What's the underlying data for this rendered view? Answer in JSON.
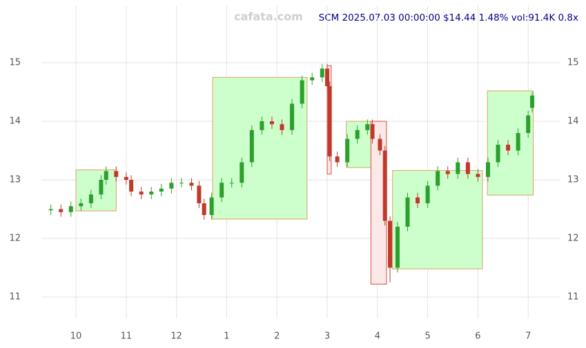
{
  "chart_data": {
    "type": "candlestick",
    "title": "SCM 2025.07.03 00:00:00 $14.44 1.48% vol:91.4K 0.8x",
    "watermark": "cafata.com",
    "x": [
      9.5,
      9.7,
      9.9,
      10.1,
      10.3,
      10.5,
      10.6,
      10.8,
      11.0,
      11.1,
      11.3,
      11.5,
      11.7,
      11.9,
      12.1,
      12.3,
      12.45,
      12.55,
      12.7,
      12.9,
      13.1,
      13.3,
      13.5,
      13.7,
      13.9,
      14.1,
      14.3,
      14.5,
      14.7,
      14.9,
      15.0,
      15.05,
      15.2,
      15.4,
      15.6,
      15.8,
      15.9,
      16.05,
      16.15,
      16.25,
      16.4,
      16.6,
      16.8,
      17.0,
      17.2,
      17.4,
      17.6,
      17.8,
      18.0,
      18.2,
      18.4,
      18.6,
      18.8,
      19.0,
      19.08
    ],
    "open": [
      12.48,
      12.5,
      12.45,
      12.55,
      12.6,
      12.75,
      13.0,
      13.15,
      13.05,
      13.0,
      12.8,
      12.75,
      12.8,
      12.85,
      12.95,
      12.95,
      12.9,
      12.6,
      12.4,
      12.7,
      12.95,
      12.95,
      13.3,
      13.85,
      14.0,
      13.95,
      13.85,
      14.3,
      14.7,
      14.75,
      14.9,
      14.6,
      13.4,
      13.3,
      13.7,
      13.85,
      13.95,
      13.7,
      13.5,
      12.3,
      11.5,
      12.2,
      12.7,
      12.6,
      12.9,
      13.15,
      13.1,
      13.3,
      13.1,
      13.05,
      13.3,
      13.6,
      13.5,
      13.8,
      14.23
    ],
    "high": [
      12.58,
      12.58,
      12.63,
      12.68,
      12.83,
      13.08,
      13.23,
      13.23,
      13.13,
      13.08,
      12.88,
      12.88,
      12.93,
      13.03,
      13.03,
      13.03,
      12.98,
      12.68,
      12.78,
      13.03,
      13.03,
      13.38,
      13.93,
      14.08,
      14.08,
      14.03,
      14.38,
      14.78,
      14.83,
      14.98,
      14.98,
      14.68,
      13.48,
      13.78,
      13.93,
      14.03,
      14.03,
      13.78,
      13.58,
      12.38,
      12.28,
      12.78,
      12.78,
      12.98,
      13.23,
      13.23,
      13.38,
      13.38,
      13.18,
      13.38,
      13.68,
      13.68,
      13.88,
      14.18,
      14.5
    ],
    "low": [
      12.4,
      12.37,
      12.37,
      12.47,
      12.52,
      12.67,
      12.92,
      12.97,
      12.92,
      12.72,
      12.67,
      12.67,
      12.72,
      12.77,
      12.87,
      12.82,
      12.52,
      12.32,
      12.32,
      12.62,
      12.87,
      12.87,
      13.22,
      13.77,
      13.87,
      13.77,
      13.77,
      14.22,
      14.62,
      14.67,
      14.52,
      13.32,
      13.22,
      13.22,
      13.62,
      13.77,
      13.62,
      13.42,
      12.22,
      11.25,
      11.42,
      12.12,
      12.52,
      12.52,
      12.82,
      13.02,
      13.02,
      13.02,
      12.97,
      12.97,
      13.22,
      13.42,
      13.42,
      13.72,
      14.15
    ],
    "close": [
      12.5,
      12.45,
      12.55,
      12.6,
      12.75,
      13.0,
      13.15,
      13.05,
      13.0,
      12.8,
      12.75,
      12.8,
      12.85,
      12.95,
      12.95,
      12.9,
      12.6,
      12.4,
      12.7,
      12.95,
      12.95,
      13.3,
      13.85,
      14.0,
      13.95,
      13.85,
      14.3,
      14.7,
      14.75,
      14.9,
      14.6,
      13.4,
      13.3,
      13.7,
      13.85,
      13.95,
      13.7,
      13.5,
      12.3,
      11.5,
      12.2,
      12.7,
      12.6,
      12.9,
      13.15,
      13.1,
      13.3,
      13.1,
      13.05,
      13.3,
      13.6,
      13.5,
      13.8,
      14.1,
      14.44
    ],
    "up_color": "#2ca02c",
    "down_color": "#c0392b",
    "zones": [
      {
        "x": [
          10.0,
          10.8
        ],
        "y": [
          12.47,
          13.17
        ],
        "color": "#ccffcc"
      },
      {
        "x": [
          12.72,
          14.6
        ],
        "y": [
          12.33,
          14.75
        ],
        "color": "#ccffcc"
      },
      {
        "x": [
          15.0,
          15.08
        ],
        "y": [
          13.1,
          14.95
        ],
        "color": "#fde8e8"
      },
      {
        "x": [
          15.38,
          15.89
        ],
        "y": [
          13.21,
          14.0
        ],
        "color": "#ccffcc"
      },
      {
        "x": [
          15.87,
          16.18
        ],
        "y": [
          11.22,
          14.0
        ],
        "color": "#fde8e8"
      },
      {
        "x": [
          16.3,
          18.09
        ],
        "y": [
          11.48,
          13.16
        ],
        "color": "#ccffcc"
      },
      {
        "x": [
          18.19,
          19.1
        ],
        "y": [
          12.74,
          14.52
        ],
        "color": "#ccffcc"
      }
    ],
    "xlim": [
      9.48,
      19.1
    ],
    "xticks": [
      {
        "value": 10,
        "label": "10"
      },
      {
        "value": 11,
        "label": "11"
      },
      {
        "value": 12,
        "label": "12"
      },
      {
        "value": 13,
        "label": "1"
      },
      {
        "value": 14,
        "label": "2"
      },
      {
        "value": 15,
        "label": "3"
      },
      {
        "value": 16,
        "label": "4"
      },
      {
        "value": 17,
        "label": "5"
      },
      {
        "value": 18,
        "label": "6"
      },
      {
        "value": 19,
        "label": "7"
      }
    ],
    "ylim": [
      10.72,
      15.95
    ],
    "yticks": [
      11,
      12,
      13,
      14,
      15
    ],
    "grid": true
  }
}
